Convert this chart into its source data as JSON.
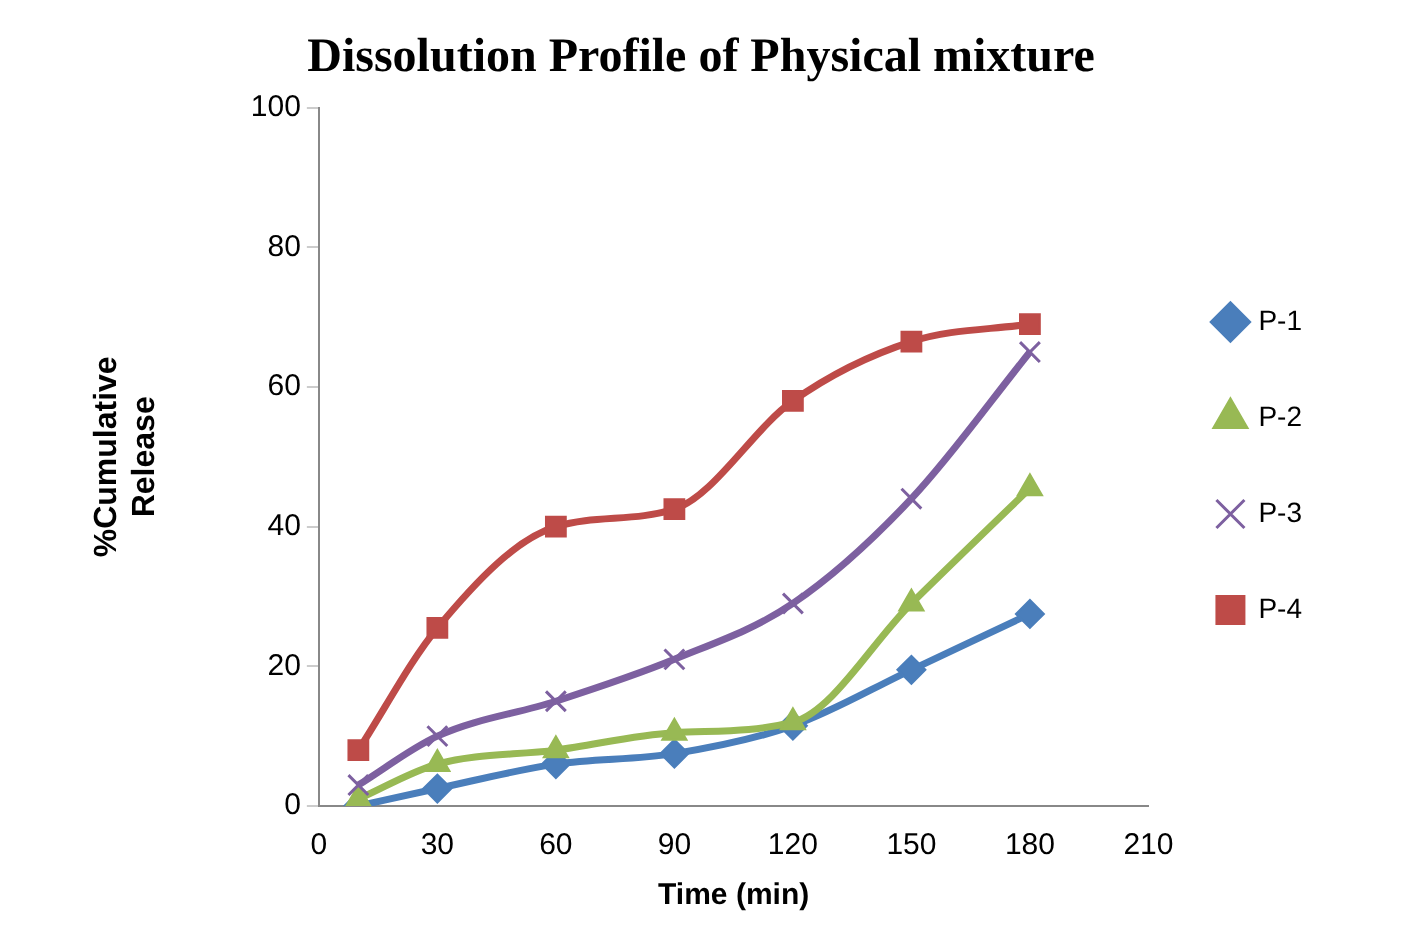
{
  "chart_data": {
    "type": "line",
    "title": "Dissolution Profile of Physical mixture",
    "xlabel": "Time (min)",
    "ylabel": "%Cumulative Release",
    "x": [
      10,
      30,
      60,
      90,
      120,
      150,
      180
    ],
    "series": [
      {
        "name": "P-1",
        "color": "#4a7ebb",
        "marker": "diamond",
        "values": [
          0,
          2.5,
          6,
          7.5,
          11.5,
          19.5,
          27.5
        ]
      },
      {
        "name": "P-2",
        "color": "#98b954",
        "marker": "triangle",
        "values": [
          1,
          6,
          8,
          10.5,
          12,
          29,
          45.5
        ]
      },
      {
        "name": "P-3",
        "color": "#7d60a0",
        "marker": "cross",
        "values": [
          3,
          10,
          15,
          21,
          29,
          44,
          65
        ]
      },
      {
        "name": "P-4",
        "color": "#be4b48",
        "marker": "square",
        "values": [
          8,
          25.5,
          40,
          42.5,
          58,
          66.5,
          69
        ]
      }
    ],
    "xlim": [
      0,
      210
    ],
    "xticks": [
      0,
      30,
      60,
      90,
      120,
      150,
      180,
      210
    ],
    "ylim": [
      0,
      100
    ],
    "yticks": [
      0,
      20,
      40,
      60,
      80,
      100
    ],
    "grid": false,
    "legend": "right"
  }
}
